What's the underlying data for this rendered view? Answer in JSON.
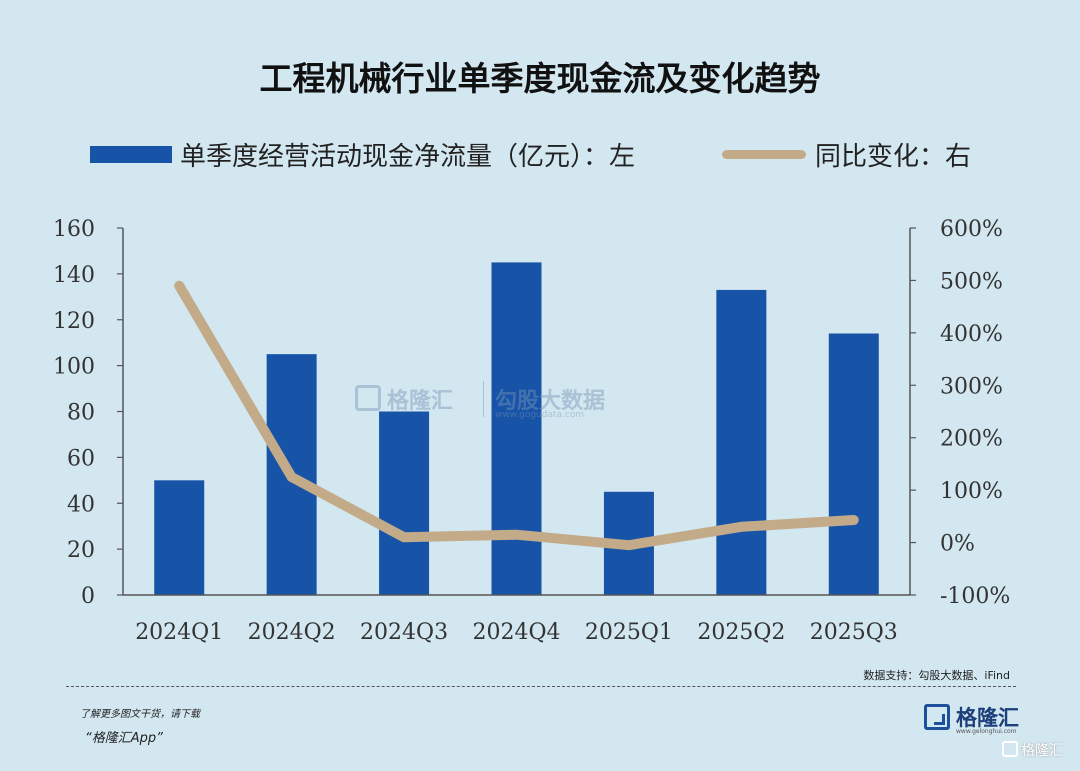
{
  "title": "工程机械行业单季度现金流及变化趋势",
  "legend": {
    "bar_label": "单季度经营活动现金净流量（亿元）：左",
    "line_label": "同比变化：右"
  },
  "source": "数据支持：勾股大数据、iFind",
  "footer": {
    "promo_line1": "了解更多图文干货，请下载",
    "promo_line2": "“格隆汇App”",
    "logo_name": "格隆汇",
    "logo_url": "www.gelonghui.com",
    "corner_watermark": "格隆汇"
  },
  "watermark": {
    "brand1": "格隆汇",
    "brand2": "勾股大数据",
    "url2": "www.gogudata.com"
  },
  "colors": {
    "bar": "#1753a6",
    "line": "#c3ab8a",
    "background": "#d3e7f0"
  },
  "chart_data": {
    "type": "bar",
    "categories": [
      "2024Q1",
      "2024Q2",
      "2024Q3",
      "2024Q4",
      "2025Q1",
      "2025Q2",
      "2025Q3"
    ],
    "series": [
      {
        "name": "单季度经营活动现金净流量（亿元）",
        "type": "bar",
        "axis": "left",
        "values": [
          50,
          105,
          80,
          145,
          45,
          133,
          114
        ]
      },
      {
        "name": "同比变化",
        "type": "line",
        "axis": "right",
        "values": [
          4.9,
          1.25,
          0.1,
          0.15,
          -0.05,
          0.3,
          0.43
        ]
      }
    ],
    "y_left": {
      "ylim": [
        0,
        160
      ],
      "ticks": [
        "0",
        "20",
        "40",
        "60",
        "80",
        "100",
        "120",
        "140",
        "160"
      ]
    },
    "y_right": {
      "ylim": [
        -1,
        6
      ],
      "ticks": [
        "-100%",
        "0%",
        "100%",
        "200%",
        "300%",
        "400%",
        "500%",
        "600%"
      ]
    },
    "grid": false,
    "legend_position": "top"
  }
}
